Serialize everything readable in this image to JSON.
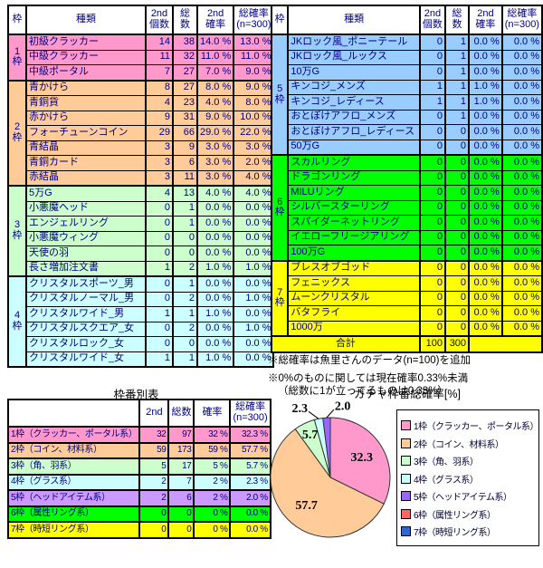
{
  "left_table": {
    "headers": [
      "枠",
      "種類",
      "2nd\n個数",
      "総数",
      "2nd\n確率",
      "総確率\n(n=300)"
    ],
    "groups": [
      {
        "label": "1枠",
        "color": "#FF99CC",
        "rows": [
          [
            "初級クラッカー",
            "14",
            "38",
            "14.0 %",
            "13.0 %"
          ],
          [
            "中級クラッカー",
            "11",
            "32",
            "11.0 %",
            "11.0 %"
          ],
          [
            "中級ポータル",
            "7",
            "27",
            "7.0 %",
            "9.0 %"
          ]
        ]
      },
      {
        "label": "2枠",
        "color": "#FFCC99",
        "rows": [
          [
            "青かけら",
            "8",
            "27",
            "8.0 %",
            "9.0 %"
          ],
          [
            "青銅貨",
            "4",
            "23",
            "4.0 %",
            "8.0 %"
          ],
          [
            "赤かけら",
            "9",
            "31",
            "9.0 %",
            "10.0 %"
          ],
          [
            "フォーチューンコイン",
            "29",
            "66",
            "29.0 %",
            "22.0 %"
          ],
          [
            "青結晶",
            "3",
            "9",
            "3.0 %",
            "3.0 %"
          ],
          [
            "青銅カード",
            "3",
            "6",
            "3.0 %",
            "2.0 %"
          ],
          [
            "赤結晶",
            "3",
            "11",
            "3.0 %",
            "4.0 %"
          ]
        ]
      },
      {
        "label": "3枠",
        "color": "#CCFFCC",
        "rows": [
          [
            "5万G",
            "4",
            "13",
            "4.0 %",
            "4.0 %"
          ],
          [
            "小悪魔ヘッド",
            "0",
            "1",
            "0.0 %",
            "0.0 %"
          ],
          [
            "エンジェルリング",
            "0",
            "1",
            "0.0 %",
            "0.0 %"
          ],
          [
            "小悪魔ウィング",
            "0",
            "0",
            "0.0 %",
            "0.0 %"
          ],
          [
            "天使の羽",
            "0",
            "0",
            "0.0 %",
            "0.0 %"
          ],
          [
            "長さ増加注文書",
            "1",
            "2",
            "1.0 %",
            "1.0 %"
          ]
        ]
      },
      {
        "label": "4枠",
        "color": "#CCFFFF",
        "rows": [
          [
            "クリスタルスポーツ_男",
            "0",
            "1",
            "0.0 %",
            "0.0 %"
          ],
          [
            "クリスタルノーマル_男",
            "0",
            "2",
            "0.0 %",
            "1.0 %"
          ],
          [
            "クリスタルワイド_男",
            "1",
            "1",
            "1.0 %",
            "0.0 %"
          ],
          [
            "クリスタルスクエア_女",
            "0",
            "2",
            "0.0 %",
            "1.0 %"
          ],
          [
            "クリスタルロック_女",
            "0",
            "0",
            "0.0 %",
            "0.0 %"
          ],
          [
            "クリスタルワイド_女",
            "1",
            "1",
            "1.0 %",
            "0.0 %"
          ]
        ]
      }
    ]
  },
  "right_table": {
    "headers": [
      "枠",
      "種類",
      "2nd\n個数",
      "総数",
      "2nd\n確率",
      "総確率\n(n=300)"
    ],
    "groups": [
      {
        "label": "5枠",
        "color": "#99CCFF",
        "rows": [
          [
            "JKロック風_ポニーテール",
            "0",
            "1",
            "0.0 %",
            "0.0 %"
          ],
          [
            "JKロック風_ルックス",
            "0",
            "1",
            "0.0 %",
            "0.0 %"
          ],
          [
            "10万G",
            "0",
            "1",
            "0.0 %",
            "0.0 %"
          ],
          [
            "キンコジ_メンズ",
            "1",
            "1",
            "1.0 %",
            "0.0 %"
          ],
          [
            "キンコジ_レディース",
            "1",
            "1",
            "1.0 %",
            "0.0 %"
          ],
          [
            "おとぼけアフロ_メンズ",
            "0",
            "1",
            "0.0 %",
            "0.0 %"
          ],
          [
            "おとぼけアフロ_レディース",
            "0",
            "0",
            "0.0 %",
            "0.0 %"
          ],
          [
            "50万G",
            "0",
            "0",
            "0.0 %",
            "0.0 %"
          ]
        ]
      },
      {
        "label": "6枠",
        "color": "#00FF00",
        "rows": [
          [
            "スカルリング",
            "0",
            "0",
            "0.0 %",
            "0.0 %"
          ],
          [
            "ドラゴンリング",
            "0",
            "0",
            "0.0 %",
            "0.0 %"
          ],
          [
            "MILUリング",
            "0",
            "0",
            "0.0 %",
            "0.0 %"
          ],
          [
            "シルバースターリング",
            "0",
            "0",
            "0.0 %",
            "0.0 %"
          ],
          [
            "スパイダーネットリング",
            "0",
            "0",
            "0.0 %",
            "0.0 %"
          ],
          [
            "イエローフリージアリング",
            "0",
            "0",
            "0.0 %",
            "0.0 %"
          ],
          [
            "100万G",
            "0",
            "0",
            "0.0 %",
            "0.0 %"
          ]
        ]
      },
      {
        "label": "7枠",
        "color": "#FFFF00",
        "rows": [
          [
            "ブレスオブゴッド",
            "0",
            "0",
            "0.0 %",
            "0.0 %"
          ],
          [
            "フェニックス",
            "0",
            "0",
            "0.0 %",
            "0.0 %"
          ],
          [
            "ムーンクリスタル",
            "0",
            "0",
            "0.0 %",
            "0.0 %"
          ],
          [
            "バタフライ",
            "0",
            "0",
            "0.0 %",
            "0.0 %"
          ],
          [
            "1000万",
            "0",
            "0",
            "0.0 %",
            "0.0 %"
          ]
        ]
      }
    ],
    "total": {
      "label": "合計",
      "second": "100",
      "total": "300",
      "color": "#FFFF00"
    }
  },
  "notes": [
    "※総確率は魚里さんのデータ(n=100)を追加",
    "※0%のものに関しては現在確率0.33%未満",
    "（総数に1が立ってるものは0.33%）"
  ],
  "summary_table": {
    "title": "枠番別表",
    "headers": [
      "",
      "2nd",
      "総数",
      "確率",
      "総確率\n(n=300)"
    ],
    "rows": [
      {
        "label": "1枠（クラッカー、ポータル系）",
        "color": "#FF99CC",
        "second": "32",
        "total": "97",
        "rate": "32 %",
        "total_rate": "32.3 %"
      },
      {
        "label": "2枠（コイン、材料系）",
        "color": "#FFCC99",
        "second": "59",
        "total": "173",
        "rate": "59 %",
        "total_rate": "57.7 %"
      },
      {
        "label": "3枠（角、羽系）",
        "color": "#CCFFCC",
        "second": "5",
        "total": "17",
        "rate": "5 %",
        "total_rate": "5.7 %"
      },
      {
        "label": "4枠（グラス系）",
        "color": "#CCFFFF",
        "second": "2",
        "total": "7",
        "rate": "2 %",
        "total_rate": "2.3 %"
      },
      {
        "label": "5枠（ヘッドアイテム系）",
        "color": "#CC99FF",
        "second": "2",
        "total": "6",
        "rate": "2 %",
        "total_rate": "2.0 %"
      },
      {
        "label": "6枠（属性リング系）",
        "color": "#00FF00",
        "second": "0",
        "total": "0",
        "rate": "0 %",
        "total_rate": "0.0 %"
      },
      {
        "label": "7枠（時短リング系）",
        "color": "#FFFF00",
        "second": "0",
        "total": "0",
        "rate": "0 %",
        "total_rate": "0.0 %"
      }
    ]
  },
  "chart_data": {
    "type": "pie",
    "title": "ガチャ枠番総確率[%]",
    "labels": [
      "1枠（クラッカー、ポータル系）",
      "2枠（コイン、材料系）",
      "3枠（角、羽系）",
      "4枠（グラス系）",
      "5枠（ヘッドアイテム系）",
      "6枠（属性リング系）",
      "7枠（時短リング系）"
    ],
    "values": [
      32.3,
      57.7,
      5.7,
      2.3,
      2.0,
      0.0,
      0.0
    ],
    "colors": [
      "#FF99CC",
      "#FFCC99",
      "#CCFFCC",
      "#CCFFFF",
      "#9966FF",
      "#FF6666",
      "#3366CC"
    ],
    "legend_position": "right",
    "start_angle_deg": 0,
    "direction": "clockwise"
  }
}
